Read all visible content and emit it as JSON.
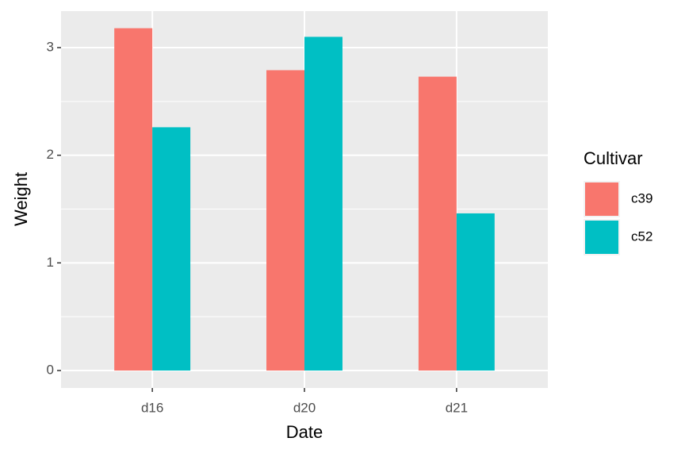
{
  "chart_data": {
    "type": "bar",
    "x_label": "Date",
    "y_label": "Weight",
    "categories": [
      "d16",
      "d20",
      "d21"
    ],
    "series": [
      {
        "name": "c39",
        "color": "#F8766D",
        "values": [
          3.18,
          2.79,
          2.73
        ]
      },
      {
        "name": "c52",
        "color": "#00BFC4",
        "values": [
          2.26,
          3.1,
          1.46
        ]
      }
    ],
    "legend_title": "Cultivar",
    "legend_position": "right",
    "ylim": [
      -0.162,
      3.339
    ],
    "yticks": [
      0,
      1,
      2,
      3
    ],
    "grid": true
  }
}
